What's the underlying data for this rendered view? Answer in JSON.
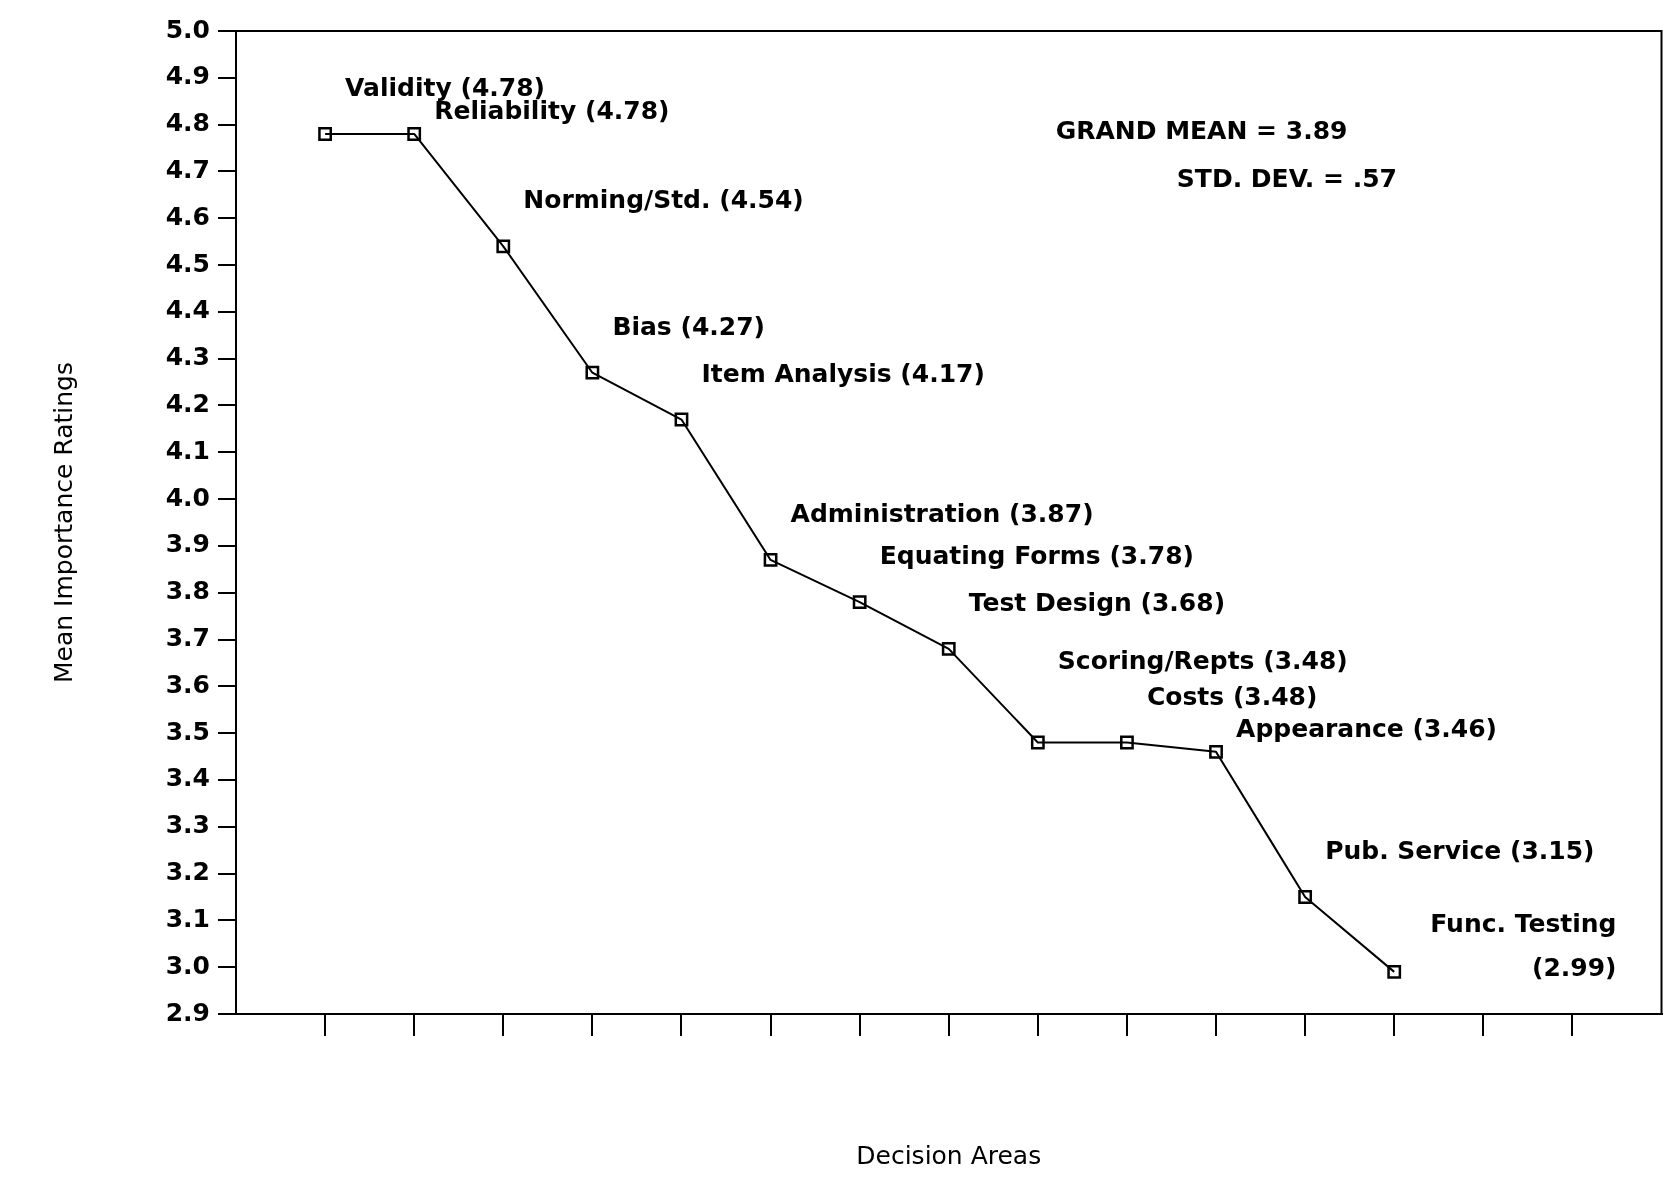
{
  "chart_data": {
    "type": "line",
    "xlabel": "Decision Areas",
    "ylabel": "Mean Importance Ratings",
    "categories": [
      null,
      null,
      null,
      null,
      null,
      null,
      null,
      null,
      null,
      null,
      null,
      null,
      null,
      null,
      null
    ],
    "series": [
      {
        "color": "#000000",
        "values": [
          4.78,
          4.78,
          4.54,
          4.27,
          4.17,
          3.87,
          3.78,
          3.68,
          3.48,
          3.48,
          3.46,
          3.15,
          2.99,
          null,
          null
        ],
        "value_labels": [
          "Validity (4.78)",
          "Reliability (4.78)",
          "Norming/Std. (4.54)",
          "Bias (4.27)",
          "Item Analysis (4.17)",
          "Administration (3.87)",
          "Equating Forms (3.78)",
          "Test Design (3.68)",
          "Scoring/Repts (3.48)",
          "Costs (3.48)",
          "Appearance (3.46)",
          "Pub. Service (3.15)",
          "Func. Testing (2.99)",
          null,
          null
        ]
      }
    ],
    "ylim": [
      2.9,
      5.0
    ],
    "yticks": [
      2.9,
      {
        "value": 3,
        "label": "3.0"
      },
      3.1,
      3.2,
      3.3,
      3.4,
      3.5,
      3.6,
      3.7,
      3.8,
      3.9,
      {
        "value": 4,
        "label": "4.0"
      },
      4.1,
      4.2,
      4.3,
      4.4,
      4.5,
      4.6,
      4.7,
      4.8,
      4.9,
      {
        "value": 5,
        "label": "5.0"
      }
    ],
    "annotations": [
      "GRAND MEAN = 3.89",
      "STD. DEV. = .57"
    ],
    "marker": "square",
    "line_style": "solid",
    "grid": false,
    "legend": false
  }
}
